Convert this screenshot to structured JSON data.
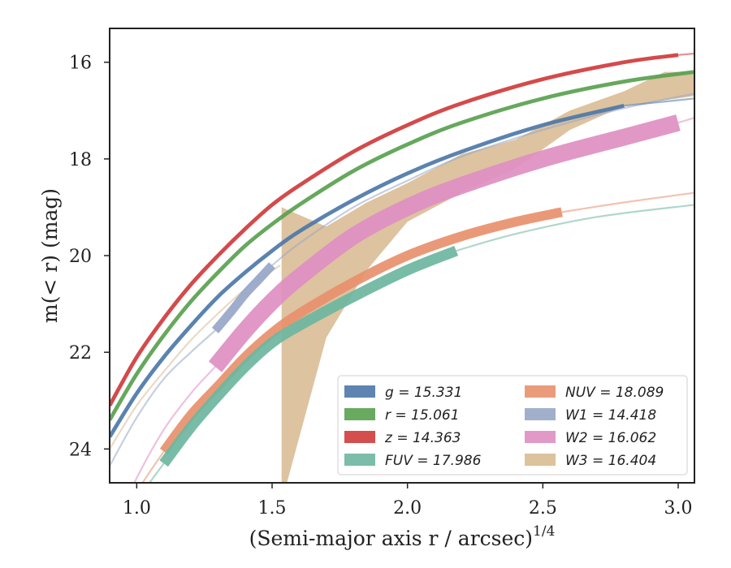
{
  "chart_data": {
    "type": "line",
    "xlabel": "(Semi-major axis r / arcsec)",
    "xlabel_exponent": "1/4",
    "ylabel": "m(< r) (mag)",
    "xlim": [
      0.9,
      3.06
    ],
    "ylim": [
      24.7,
      15.3
    ],
    "y_inverted": true,
    "grid": false,
    "legend_position": "lower-right",
    "xticks": [
      "1.0",
      "1.5",
      "2.0",
      "2.5",
      "3.0"
    ],
    "xtick_values": [
      1.0,
      1.5,
      2.0,
      2.5,
      3.0
    ],
    "yticks": [
      "16",
      "18",
      "20",
      "22",
      "24"
    ],
    "ytick_values": [
      16,
      18,
      20,
      22,
      24
    ],
    "series": [
      {
        "name": "g = 15.331",
        "color": "#4c78a8",
        "band_width_mag": 0.08,
        "total": 15.331,
        "x": [
          0.9,
          1.0,
          1.1,
          1.2,
          1.3,
          1.4,
          1.5,
          1.6,
          1.8,
          2.0,
          2.2,
          2.5,
          2.8
        ],
        "y": [
          23.75,
          22.85,
          22.1,
          21.45,
          20.85,
          20.35,
          19.9,
          19.5,
          18.85,
          18.3,
          17.85,
          17.3,
          16.9
        ],
        "x_faint": [
          2.8,
          3.06
        ],
        "y_faint": [
          16.9,
          16.75
        ]
      },
      {
        "name": "r = 15.061",
        "color": "#59a14f",
        "band_width_mag": 0.08,
        "total": 15.061,
        "x": [
          0.9,
          1.0,
          1.1,
          1.2,
          1.3,
          1.4,
          1.5,
          1.6,
          1.8,
          2.0,
          2.2,
          2.5,
          2.8,
          3.06
        ],
        "y": [
          23.4,
          22.45,
          21.65,
          20.95,
          20.35,
          19.8,
          19.35,
          18.95,
          18.25,
          17.7,
          17.25,
          16.75,
          16.4,
          16.2
        ]
      },
      {
        "name": "z = 14.363",
        "color": "#d03b3b",
        "band_width_mag": 0.08,
        "total": 14.363,
        "x": [
          0.9,
          1.0,
          1.1,
          1.2,
          1.3,
          1.4,
          1.5,
          1.6,
          1.8,
          2.0,
          2.2,
          2.5,
          2.8,
          3.0
        ],
        "y": [
          23.1,
          22.1,
          21.3,
          20.6,
          20.0,
          19.45,
          18.95,
          18.55,
          17.85,
          17.3,
          16.85,
          16.35,
          16.0,
          15.85
        ],
        "x_faint": [
          3.0,
          3.06
        ],
        "y_faint": [
          15.85,
          15.82
        ]
      },
      {
        "name": "FUV = 17.986",
        "color": "#6db6a0",
        "band_width_mag": 0.22,
        "total": 17.986,
        "x": [
          1.1,
          1.2,
          1.3,
          1.4,
          1.5,
          1.6,
          1.8,
          2.0,
          2.18
        ],
        "y": [
          24.3,
          23.55,
          22.9,
          22.3,
          21.8,
          21.45,
          20.85,
          20.3,
          19.9
        ],
        "x_faint": [
          0.9,
          1.0,
          1.1,
          2.18,
          2.4,
          2.7,
          3.06
        ],
        "y_faint": [
          26.2,
          25.1,
          24.3,
          19.9,
          19.55,
          19.2,
          18.95
        ]
      },
      {
        "name": "NUV = 18.089",
        "color": "#e8906d",
        "band_width_mag": 0.2,
        "total": 18.089,
        "x": [
          1.1,
          1.2,
          1.3,
          1.4,
          1.5,
          1.6,
          1.8,
          2.0,
          2.2,
          2.4,
          2.57
        ],
        "y": [
          24.05,
          23.3,
          22.7,
          22.1,
          21.6,
          21.2,
          20.55,
          20.0,
          19.6,
          19.3,
          19.1
        ],
        "x_faint": [
          0.9,
          1.0,
          1.1,
          2.57,
          2.8,
          3.06
        ],
        "y_faint": [
          26.0,
          24.9,
          24.05,
          19.1,
          18.9,
          18.7
        ]
      },
      {
        "name": "W1 = 14.418",
        "color": "#97a6c8",
        "band_width_mag": 0.18,
        "total": 14.418,
        "x": [
          1.29,
          1.35,
          1.4,
          1.45,
          1.5
        ],
        "y": [
          21.55,
          21.15,
          20.8,
          20.5,
          20.2
        ],
        "x_faint": [
          0.9,
          1.0,
          1.1,
          1.2,
          1.29,
          1.5,
          1.6,
          1.8,
          2.0,
          2.2,
          2.5,
          2.8,
          3.06
        ],
        "y_faint": [
          24.35,
          23.35,
          22.55,
          22.0,
          21.55,
          20.2,
          19.75,
          19.0,
          18.45,
          17.95,
          17.4,
          16.95,
          16.65
        ]
      },
      {
        "name": "W2 = 16.062",
        "color": "#de8fc2",
        "band_width_mag": 0.35,
        "total": 16.062,
        "x": [
          1.29,
          1.4,
          1.5,
          1.6,
          1.8,
          2.0,
          2.2,
          2.5,
          2.8,
          3.0
        ],
        "y": [
          22.3,
          21.55,
          20.95,
          20.45,
          19.6,
          19.0,
          18.55,
          18.0,
          17.55,
          17.25
        ],
        "x_faint": [
          0.9,
          1.0,
          1.1,
          1.2,
          1.29,
          3.0,
          3.06
        ],
        "y_faint": [
          25.8,
          24.6,
          23.6,
          22.85,
          22.3,
          17.25,
          17.15
        ]
      },
      {
        "name": "W3 = 16.404",
        "color": "#d8bb92",
        "band": "irregular",
        "total": 16.404,
        "x": [
          0.9,
          1.0,
          1.1,
          1.2,
          1.3,
          1.4,
          1.5,
          1.53,
          3.06
        ],
        "band_upper": {
          "x": [
            1.535,
            1.7,
            1.85,
            2.0,
            2.2,
            2.4,
            2.6,
            2.8,
            2.95,
            3.06
          ],
          "y": [
            19.0,
            19.4,
            18.9,
            18.5,
            17.9,
            17.6,
            17.0,
            16.6,
            16.2,
            16.2
          ]
        },
        "band_lower": {
          "x": [
            1.535,
            1.55,
            1.7,
            1.85,
            2.0,
            2.2,
            2.4,
            2.6,
            2.8,
            3.06
          ],
          "y": [
            24.8,
            24.8,
            21.7,
            20.3,
            19.3,
            18.7,
            18.2,
            17.4,
            16.9,
            16.7
          ]
        },
        "x_faint": [
          0.9,
          1.0,
          1.1,
          1.2,
          1.3,
          1.4,
          1.53
        ],
        "y_faint": [
          24.0,
          23.1,
          22.4,
          21.75,
          21.2,
          20.7,
          20.2
        ]
      }
    ]
  }
}
